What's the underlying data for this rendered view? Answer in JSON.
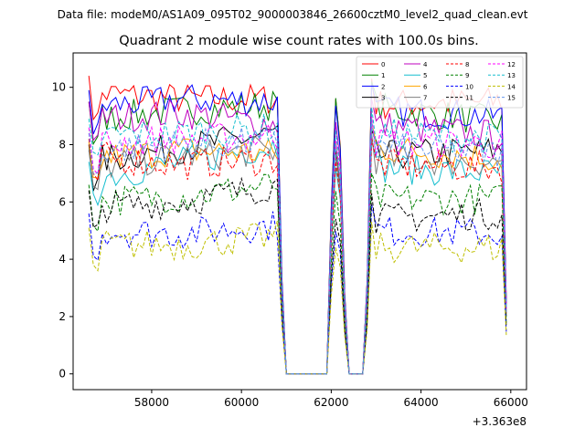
{
  "chart_data": {
    "type": "line",
    "suptitle": "Data file: modeM0/AS1A09_095T02_9000003846_26600cztM0_level2_quad_clean.evt",
    "title": "Quadrant 2 module wise count rates with 100.0s bins.",
    "xlabel": "",
    "ylabel": "",
    "x_offset_label": "+3.363e8",
    "xlim": [
      56250,
      66350
    ],
    "ylim": [
      -0.55,
      11.2
    ],
    "x_ticks": [
      58000,
      60000,
      62000,
      64000,
      66000
    ],
    "x_tick_labels": [
      "58000",
      "60000",
      "62000",
      "64000",
      "66000"
    ],
    "y_ticks": [
      0,
      2,
      4,
      6,
      8,
      10
    ],
    "y_tick_labels": [
      "0",
      "2",
      "4",
      "6",
      "8",
      "10"
    ],
    "legend_position": "top-right",
    "series": [
      {
        "name": "0",
        "color": "#ff0000",
        "dash": "solid",
        "levels": [
          9.8,
          9.6,
          9.6,
          9.4,
          9.5
        ]
      },
      {
        "name": "1",
        "color": "#008000",
        "dash": "solid",
        "levels": [
          8.9,
          9.2,
          9.4,
          9.3,
          8.8
        ]
      },
      {
        "name": "2",
        "color": "#0000ff",
        "dash": "solid",
        "levels": [
          9.3,
          9.6,
          9.5,
          9.2,
          9.0
        ]
      },
      {
        "name": "3",
        "color": "#000000",
        "dash": "solid",
        "levels": [
          7.4,
          7.9,
          8.4,
          7.6,
          7.8
        ]
      },
      {
        "name": "4",
        "color": "#bf00bf",
        "dash": "solid",
        "levels": [
          8.9,
          9.1,
          8.7,
          8.7,
          8.3
        ]
      },
      {
        "name": "5",
        "color": "#17becf",
        "dash": "solid",
        "levels": [
          6.8,
          7.4,
          8.0,
          7.2,
          7.0
        ]
      },
      {
        "name": "6",
        "color": "#ffa500",
        "dash": "solid",
        "levels": [
          7.5,
          7.8,
          7.7,
          7.9,
          7.5
        ]
      },
      {
        "name": "7",
        "color": "#808080",
        "dash": "solid",
        "levels": [
          7.2,
          7.6,
          7.8,
          7.5,
          7.4
        ]
      },
      {
        "name": "8",
        "color": "#ff0000",
        "dash": "dashed",
        "levels": [
          7.6,
          7.3,
          7.5,
          7.3,
          7.2
        ]
      },
      {
        "name": "9",
        "color": "#008000",
        "dash": "dashed",
        "levels": [
          6.0,
          6.2,
          6.6,
          6.1,
          6.1
        ]
      },
      {
        "name": "10",
        "color": "#0000ff",
        "dash": "dashed",
        "levels": [
          5.0,
          4.9,
          5.2,
          5.0,
          4.9
        ]
      },
      {
        "name": "11",
        "color": "#000000",
        "dash": "dashed",
        "levels": [
          5.8,
          6.0,
          6.6,
          5.4,
          5.6
        ]
      },
      {
        "name": "12",
        "color": "#ff00ff",
        "dash": "dashed",
        "levels": [
          8.0,
          8.2,
          8.3,
          8.1,
          8.0
        ]
      },
      {
        "name": "13",
        "color": "#17becf",
        "dash": "dashed",
        "levels": [
          8.3,
          8.4,
          8.6,
          8.4,
          8.2
        ]
      },
      {
        "name": "14",
        "color": "#bfbf00",
        "dash": "dashed",
        "levels": [
          4.5,
          4.5,
          4.8,
          4.4,
          4.4
        ]
      },
      {
        "name": "15",
        "color": "#6495ed",
        "dash": "dashed",
        "levels": [
          7.8,
          8.0,
          8.1,
          7.9,
          7.7
        ]
      }
    ],
    "segments": [
      {
        "name": "start",
        "x_start": 56600,
        "x_end": 56600,
        "count_levels_index": 0
      },
      {
        "name": "first-orbit",
        "x_start": 56700,
        "x_end": 60700
      },
      {
        "name": "gap-1",
        "x_start": 60900,
        "x_end": 61900,
        "value": 0
      },
      {
        "name": "spike",
        "x_start": 62000,
        "x_end": 62400
      },
      {
        "name": "gap-2",
        "x_start": 62400,
        "x_end": 62700,
        "value": 0
      },
      {
        "name": "second-orbit",
        "x_start": 62800,
        "x_end": 65800
      }
    ],
    "drop_points": [
      {
        "x": 60900,
        "value": 2.0
      },
      {
        "x": 61000,
        "value": 0
      },
      {
        "x": 61800,
        "value": 0
      },
      {
        "x": 61900,
        "value": 0
      },
      {
        "x": 62000,
        "value": 6.0
      },
      {
        "x": 62100,
        "value": 9.0
      },
      {
        "x": 62200,
        "value": 8.0
      },
      {
        "x": 62300,
        "value": 3.0
      },
      {
        "x": 62400,
        "value": 0
      },
      {
        "x": 62700,
        "value": 0
      },
      {
        "x": 62800,
        "value": 3.0
      },
      {
        "x": 62900,
        "value": 9.0
      },
      {
        "x": 65900,
        "value": 2.2
      }
    ]
  }
}
